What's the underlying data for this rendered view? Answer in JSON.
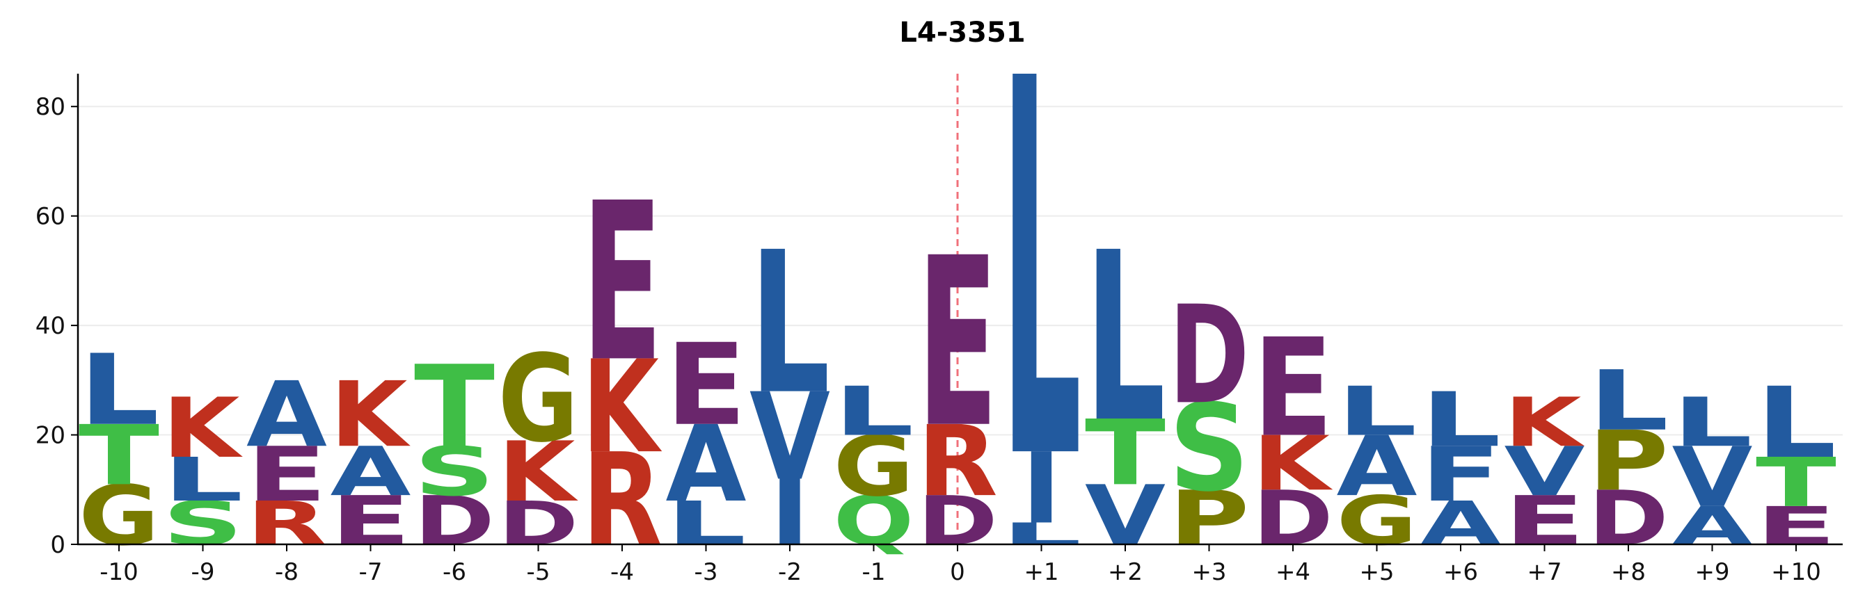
{
  "chart_data": {
    "type": "sequence-logo",
    "title": "L4-3351",
    "xlabel": "",
    "ylabel": "",
    "ylim": [
      0,
      86
    ],
    "yticks": [
      0,
      20,
      40,
      60,
      80
    ],
    "grid": true,
    "reference_line": {
      "position": "0",
      "style": "dashed",
      "color": "#f0707a"
    },
    "colors": {
      "L": "#225a9f",
      "A": "#225a9f",
      "V": "#225a9f",
      "I": "#225a9f",
      "F": "#225a9f",
      "K": "#c0301e",
      "R": "#c0301e",
      "E": "#6a266c",
      "D": "#6a266c",
      "G": "#787a00",
      "P": "#787a00",
      "T": "#3fbe46",
      "S": "#3fbe46",
      "Q": "#3fbe46"
    },
    "positions": [
      "-10",
      "-9",
      "-8",
      "-7",
      "-6",
      "-5",
      "-4",
      "-3",
      "-2",
      "-1",
      "0",
      "+1",
      "+2",
      "+3",
      "+4",
      "+5",
      "+6",
      "+7",
      "+8",
      "+9",
      "+10"
    ],
    "stacks": [
      [
        {
          "letter": "G",
          "height": 11
        },
        {
          "letter": "T",
          "height": 11
        },
        {
          "letter": "L",
          "height": 13
        }
      ],
      [
        {
          "letter": "S",
          "height": 8
        },
        {
          "letter": "L",
          "height": 8
        },
        {
          "letter": "K",
          "height": 11
        }
      ],
      [
        {
          "letter": "R",
          "height": 8
        },
        {
          "letter": "E",
          "height": 10
        },
        {
          "letter": "A",
          "height": 12
        }
      ],
      [
        {
          "letter": "E",
          "height": 9
        },
        {
          "letter": "A",
          "height": 9
        },
        {
          "letter": "K",
          "height": 12
        }
      ],
      [
        {
          "letter": "D",
          "height": 9
        },
        {
          "letter": "S",
          "height": 9
        },
        {
          "letter": "T",
          "height": 15
        }
      ],
      [
        {
          "letter": "D",
          "height": 8
        },
        {
          "letter": "K",
          "height": 11
        },
        {
          "letter": "G",
          "height": 16
        }
      ],
      [
        {
          "letter": "R",
          "height": 17
        },
        {
          "letter": "K",
          "height": 17
        },
        {
          "letter": "E",
          "height": 29
        }
      ],
      [
        {
          "letter": "L",
          "height": 8
        },
        {
          "letter": "A",
          "height": 14
        },
        {
          "letter": "E",
          "height": 15
        }
      ],
      [
        {
          "letter": "I",
          "height": 12
        },
        {
          "letter": "V",
          "height": 16
        },
        {
          "letter": "L",
          "height": 26
        }
      ],
      [
        {
          "letter": "Q",
          "height": 9
        },
        {
          "letter": "G",
          "height": 11
        },
        {
          "letter": "L",
          "height": 9
        }
      ],
      [
        {
          "letter": "D",
          "height": 9
        },
        {
          "letter": "R",
          "height": 13
        },
        {
          "letter": "E",
          "height": 31
        }
      ],
      [
        {
          "letter": "L",
          "height": 4
        },
        {
          "letter": "I",
          "height": 13
        },
        {
          "letter": "L",
          "height": 69
        }
      ],
      [
        {
          "letter": "V",
          "height": 11
        },
        {
          "letter": "T",
          "height": 12
        },
        {
          "letter": "L",
          "height": 31
        }
      ],
      [
        {
          "letter": "P",
          "height": 10
        },
        {
          "letter": "S",
          "height": 16
        },
        {
          "letter": "D",
          "height": 18
        }
      ],
      [
        {
          "letter": "D",
          "height": 10
        },
        {
          "letter": "K",
          "height": 10
        },
        {
          "letter": "E",
          "height": 18
        }
      ],
      [
        {
          "letter": "G",
          "height": 9
        },
        {
          "letter": "A",
          "height": 11
        },
        {
          "letter": "L",
          "height": 9
        }
      ],
      [
        {
          "letter": "A",
          "height": 8
        },
        {
          "letter": "F",
          "height": 10
        },
        {
          "letter": "L",
          "height": 10
        }
      ],
      [
        {
          "letter": "E",
          "height": 9
        },
        {
          "letter": "V",
          "height": 9
        },
        {
          "letter": "K",
          "height": 9
        }
      ],
      [
        {
          "letter": "D",
          "height": 10
        },
        {
          "letter": "P",
          "height": 11
        },
        {
          "letter": "L",
          "height": 11
        }
      ],
      [
        {
          "letter": "A",
          "height": 7
        },
        {
          "letter": "V",
          "height": 11
        },
        {
          "letter": "L",
          "height": 9
        }
      ],
      [
        {
          "letter": "E",
          "height": 7
        },
        {
          "letter": "T",
          "height": 9
        },
        {
          "letter": "L",
          "height": 13
        }
      ]
    ]
  }
}
